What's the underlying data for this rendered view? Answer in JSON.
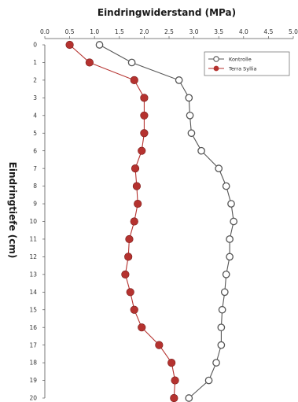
{
  "chart_data": {
    "type": "line",
    "title": "Eindringwiderstand (MPa)",
    "ylabel": "Eindringtiefe (cm)",
    "x_ticks": [
      "0.0",
      "0.5",
      "1.0",
      "1.5",
      "2.0",
      "2.5",
      "3.0",
      "3.5",
      "4.0",
      "4.5",
      "5.0"
    ],
    "xlim": [
      0,
      5
    ],
    "y_ticks": [
      "0",
      "1",
      "2",
      "3",
      "4",
      "5",
      "6",
      "7",
      "8",
      "9",
      "10",
      "11",
      "12",
      "13",
      "14",
      "15",
      "16",
      "17",
      "18",
      "19",
      "20"
    ],
    "ylim": [
      0,
      20
    ],
    "y_inverted": true,
    "x_axis_position": "top",
    "legend_position": "top-right",
    "depths": [
      0,
      1,
      2,
      3,
      4,
      5,
      6,
      7,
      8,
      9,
      10,
      11,
      12,
      13,
      14,
      15,
      16,
      17,
      18,
      19,
      20
    ],
    "series": [
      {
        "name": "Kontrolle",
        "color": "#555555",
        "marker": "open-circle",
        "values": [
          1.1,
          1.75,
          2.7,
          2.9,
          2.92,
          2.95,
          3.15,
          3.5,
          3.65,
          3.75,
          3.8,
          3.72,
          3.72,
          3.65,
          3.62,
          3.57,
          3.55,
          3.55,
          3.45,
          3.3,
          2.9
        ]
      },
      {
        "name": "Terra Syllia",
        "color": "#b5322f",
        "marker": "filled-circle",
        "values": [
          0.5,
          0.9,
          1.8,
          2.0,
          2.0,
          2.0,
          1.95,
          1.82,
          1.85,
          1.87,
          1.8,
          1.7,
          1.68,
          1.62,
          1.72,
          1.8,
          1.95,
          2.3,
          2.55,
          2.62,
          2.6
        ]
      }
    ]
  }
}
